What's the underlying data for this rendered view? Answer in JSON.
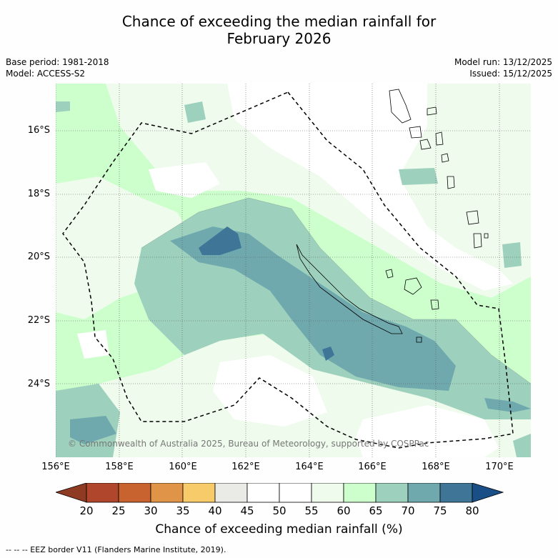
{
  "title": {
    "line1": "Chance of exceeding the median rainfall for",
    "line2": "February 2026"
  },
  "meta": {
    "base_period": "Base period: 1981-2018",
    "model": "Model: ACCESS-S2",
    "model_run": "Model run: 13/12/2025",
    "issued": "Issued: 15/12/2025"
  },
  "map": {
    "lat_labels": [
      "16°S",
      "18°S",
      "20°S",
      "22°S",
      "24°S"
    ],
    "lon_labels": [
      "156°E",
      "158°E",
      "160°E",
      "162°E",
      "164°E",
      "166°E",
      "168°E",
      "170°E"
    ],
    "copyright": "© Commonwealth of Australia 2025, Bureau of Meteorology, supported by COSPPac",
    "region": {
      "lon_min": 156.0,
      "lon_max": 171.0,
      "lat_top": -14.5,
      "lat_bottom": -26.3
    }
  },
  "colorbar": {
    "labels": [
      "20",
      "25",
      "30",
      "35",
      "40",
      "45",
      "50",
      "55",
      "60",
      "65",
      "70",
      "75",
      "80"
    ],
    "colors": [
      "#b0472c",
      "#c8622f",
      "#e09448",
      "#f8cb6a",
      "#eaeae6",
      "#ffffff",
      "#ffffff",
      "#effbec",
      "#ccffcc",
      "#9dd1bd",
      "#6fa9ae",
      "#3f7697"
    ],
    "under_color": "#8f3a22",
    "over_color": "#1a4e86",
    "title": "Chance of exceeding median rainfall (%)"
  },
  "legend_note": "--  --  -- EEZ border V11 (Flanders Marine Institute, 2019)."
}
